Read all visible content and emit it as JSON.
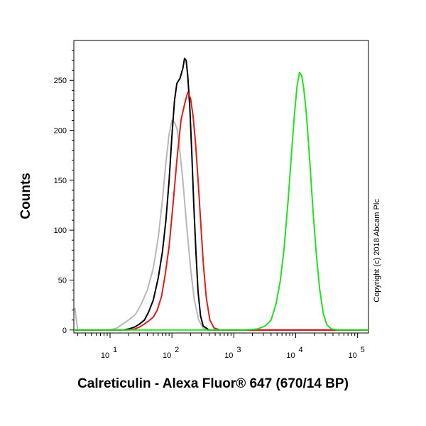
{
  "chart_data": {
    "type": "line",
    "xlabel": "Calreticulin - Alexa Fluor® 647 (670/14 BP)",
    "ylabel": "Counts",
    "x_scale": "log",
    "xlim": [
      2.6,
      150000
    ],
    "ylim": [
      -3,
      290
    ],
    "yticks": [
      0,
      50,
      100,
      150,
      200,
      250
    ],
    "xticks": [
      {
        "value": 10,
        "base": "10",
        "exp": "1"
      },
      {
        "value": 100,
        "base": "10",
        "exp": "2"
      },
      {
        "value": 1000,
        "base": "10",
        "exp": "3"
      },
      {
        "value": 10000,
        "base": "10",
        "exp": "4"
      },
      {
        "value": 100000,
        "base": "10",
        "exp": "5"
      }
    ],
    "grid": false,
    "series": [
      {
        "color": "#b8b8b8",
        "points": [
          [
            2.7,
            22
          ],
          [
            3.0,
            0
          ],
          [
            5,
            0
          ],
          [
            8,
            0
          ],
          [
            10,
            0
          ],
          [
            13,
            2
          ],
          [
            16,
            6
          ],
          [
            20,
            10
          ],
          [
            26,
            16
          ],
          [
            32,
            26
          ],
          [
            40,
            40
          ],
          [
            50,
            62
          ],
          [
            60,
            92
          ],
          [
            70,
            130
          ],
          [
            80,
            168
          ],
          [
            90,
            196
          ],
          [
            100,
            210
          ],
          [
            110,
            208
          ],
          [
            120,
            202
          ],
          [
            130,
            188
          ],
          [
            150,
            150
          ],
          [
            170,
            110
          ],
          [
            200,
            62
          ],
          [
            230,
            30
          ],
          [
            270,
            10
          ],
          [
            320,
            2
          ],
          [
            400,
            0
          ],
          [
            800,
            0
          ],
          [
            150000,
            0
          ]
        ]
      },
      {
        "color": "#000000",
        "points": [
          [
            2.6,
            0
          ],
          [
            10,
            0
          ],
          [
            16,
            0
          ],
          [
            20,
            1
          ],
          [
            25,
            3
          ],
          [
            30,
            6
          ],
          [
            36,
            10
          ],
          [
            42,
            18
          ],
          [
            50,
            30
          ],
          [
            60,
            52
          ],
          [
            70,
            78
          ],
          [
            80,
            110
          ],
          [
            90,
            150
          ],
          [
            100,
            195
          ],
          [
            110,
            230
          ],
          [
            120,
            247
          ],
          [
            135,
            252
          ],
          [
            150,
            262
          ],
          [
            160,
            272
          ],
          [
            170,
            270
          ],
          [
            180,
            255
          ],
          [
            195,
            222
          ],
          [
            210,
            176
          ],
          [
            225,
            126
          ],
          [
            245,
            76
          ],
          [
            265,
            38
          ],
          [
            290,
            14
          ],
          [
            320,
            4
          ],
          [
            400,
            0
          ],
          [
            150000,
            0
          ]
        ]
      },
      {
        "color": "#dd1c1c",
        "points": [
          [
            2.6,
            0
          ],
          [
            15,
            0
          ],
          [
            20,
            0
          ],
          [
            25,
            1
          ],
          [
            30,
            3
          ],
          [
            36,
            6
          ],
          [
            42,
            9
          ],
          [
            50,
            13
          ],
          [
            58,
            20
          ],
          [
            68,
            34
          ],
          [
            78,
            56
          ],
          [
            90,
            84
          ],
          [
            105,
            128
          ],
          [
            120,
            170
          ],
          [
            140,
            210
          ],
          [
            160,
            226
          ],
          [
            180,
            238
          ],
          [
            200,
            232
          ],
          [
            220,
            214
          ],
          [
            240,
            188
          ],
          [
            265,
            150
          ],
          [
            290,
            110
          ],
          [
            320,
            68
          ],
          [
            360,
            32
          ],
          [
            410,
            10
          ],
          [
            480,
            2
          ],
          [
            600,
            0
          ],
          [
            150000,
            0
          ]
        ]
      },
      {
        "color": "#22e022",
        "points": [
          [
            2.6,
            0
          ],
          [
            1500,
            0
          ],
          [
            2400,
            1
          ],
          [
            3200,
            4
          ],
          [
            4000,
            10
          ],
          [
            4800,
            26
          ],
          [
            5600,
            48
          ],
          [
            6500,
            82
          ],
          [
            7500,
            128
          ],
          [
            8500,
            174
          ],
          [
            9500,
            214
          ],
          [
            10500,
            244
          ],
          [
            11500,
            258
          ],
          [
            12500,
            255
          ],
          [
            13500,
            242
          ],
          [
            15000,
            214
          ],
          [
            17000,
            166
          ],
          [
            19000,
            120
          ],
          [
            21500,
            76
          ],
          [
            24500,
            40
          ],
          [
            28000,
            16
          ],
          [
            32000,
            5
          ],
          [
            38000,
            1
          ],
          [
            50000,
            0
          ],
          [
            150000,
            0
          ]
        ]
      }
    ]
  },
  "copyright": "Copyright (c) 2018 Abcam Plc"
}
